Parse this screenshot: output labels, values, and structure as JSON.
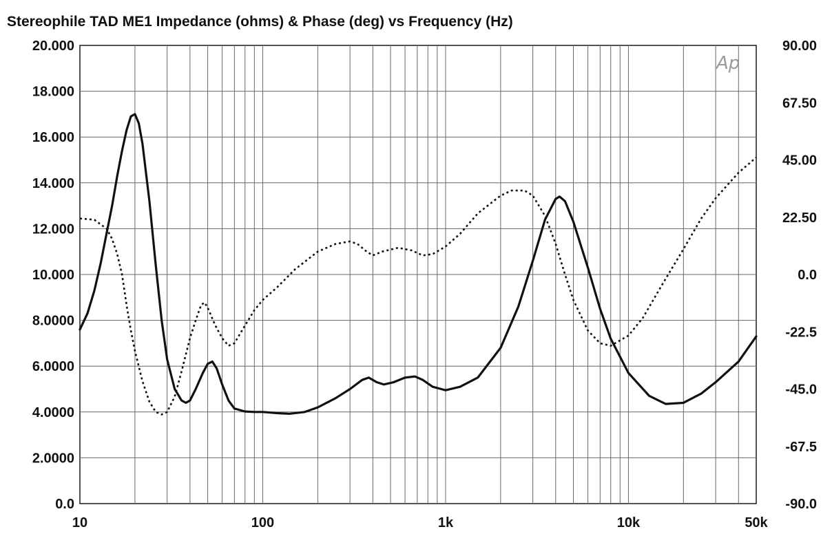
{
  "chart_data": {
    "type": "line",
    "title": "Stereophile  TAD ME1  Impedance (ohms) & Phase (deg) vs Frequency (Hz)",
    "logo": "Ap",
    "x_scale": "log",
    "xlim": [
      10,
      50000
    ],
    "x_ticks": [
      {
        "value": 10,
        "label": "10"
      },
      {
        "value": 100,
        "label": "100"
      },
      {
        "value": 1000,
        "label": "1k"
      },
      {
        "value": 10000,
        "label": "10k"
      },
      {
        "value": 50000,
        "label": "50k"
      }
    ],
    "y_left": {
      "lim": [
        0,
        20
      ],
      "ticks": [
        {
          "value": 0,
          "label": "0.0"
        },
        {
          "value": 2,
          "label": "2.0000"
        },
        {
          "value": 4,
          "label": "4.0000"
        },
        {
          "value": 6,
          "label": "6.0000"
        },
        {
          "value": 8,
          "label": "8.0000"
        },
        {
          "value": 10,
          "label": "10.000"
        },
        {
          "value": 12,
          "label": "12.000"
        },
        {
          "value": 14,
          "label": "14.000"
        },
        {
          "value": 16,
          "label": "16.000"
        },
        {
          "value": 18,
          "label": "18.000"
        },
        {
          "value": 20,
          "label": "20.000"
        }
      ]
    },
    "y_right": {
      "lim": [
        -90,
        90
      ],
      "ticks": [
        {
          "value": -90,
          "label": "-90.0"
        },
        {
          "value": -67.5,
          "label": "-67.5"
        },
        {
          "value": -45,
          "label": "-45.0"
        },
        {
          "value": -22.5,
          "label": "-22.5"
        },
        {
          "value": 0,
          "label": "0.0"
        },
        {
          "value": 22.5,
          "label": "22.50"
        },
        {
          "value": 45,
          "label": "45.00"
        },
        {
          "value": 67.5,
          "label": "67.50"
        },
        {
          "value": 90,
          "label": "90.00"
        }
      ]
    },
    "grid": true,
    "series": [
      {
        "axis": "left",
        "style": "solid",
        "points": [
          [
            10,
            7.6
          ],
          [
            11,
            8.3
          ],
          [
            12,
            9.3
          ],
          [
            13,
            10.5
          ],
          [
            14,
            11.8
          ],
          [
            15,
            13.0
          ],
          [
            16,
            14.3
          ],
          [
            17,
            15.4
          ],
          [
            18,
            16.3
          ],
          [
            19,
            16.9
          ],
          [
            20,
            17.0
          ],
          [
            21,
            16.6
          ],
          [
            22,
            15.7
          ],
          [
            24,
            13.2
          ],
          [
            26,
            10.4
          ],
          [
            28,
            8.0
          ],
          [
            30,
            6.3
          ],
          [
            33,
            5.0
          ],
          [
            36,
            4.5
          ],
          [
            38,
            4.4
          ],
          [
            40,
            4.5
          ],
          [
            43,
            5.0
          ],
          [
            47,
            5.7
          ],
          [
            50,
            6.1
          ],
          [
            53,
            6.2
          ],
          [
            56,
            5.9
          ],
          [
            60,
            5.2
          ],
          [
            65,
            4.5
          ],
          [
            70,
            4.15
          ],
          [
            80,
            4.02
          ],
          [
            90,
            4.0
          ],
          [
            100,
            4.0
          ],
          [
            120,
            3.95
          ],
          [
            140,
            3.92
          ],
          [
            170,
            4.0
          ],
          [
            200,
            4.2
          ],
          [
            250,
            4.6
          ],
          [
            300,
            5.0
          ],
          [
            350,
            5.4
          ],
          [
            380,
            5.5
          ],
          [
            420,
            5.3
          ],
          [
            460,
            5.2
          ],
          [
            520,
            5.3
          ],
          [
            600,
            5.5
          ],
          [
            680,
            5.55
          ],
          [
            750,
            5.4
          ],
          [
            850,
            5.1
          ],
          [
            1000,
            4.95
          ],
          [
            1200,
            5.1
          ],
          [
            1500,
            5.5
          ],
          [
            2000,
            6.8
          ],
          [
            2500,
            8.6
          ],
          [
            3000,
            10.6
          ],
          [
            3500,
            12.4
          ],
          [
            4000,
            13.3
          ],
          [
            4200,
            13.4
          ],
          [
            4500,
            13.2
          ],
          [
            5000,
            12.3
          ],
          [
            6000,
            10.3
          ],
          [
            7000,
            8.5
          ],
          [
            8000,
            7.2
          ],
          [
            10000,
            5.7
          ],
          [
            13000,
            4.7
          ],
          [
            16000,
            4.35
          ],
          [
            20000,
            4.4
          ],
          [
            25000,
            4.8
          ],
          [
            30000,
            5.3
          ],
          [
            40000,
            6.2
          ],
          [
            50000,
            7.3
          ]
        ]
      },
      {
        "axis": "right",
        "style": "dotted",
        "points": [
          [
            10,
            22
          ],
          [
            12,
            21.5
          ],
          [
            14,
            18
          ],
          [
            15,
            14
          ],
          [
            16,
            8
          ],
          [
            17,
            0
          ],
          [
            18,
            -12
          ],
          [
            19,
            -22
          ],
          [
            20,
            -30
          ],
          [
            22,
            -42
          ],
          [
            24,
            -50
          ],
          [
            26,
            -54
          ],
          [
            28,
            -55
          ],
          [
            30,
            -54
          ],
          [
            33,
            -48
          ],
          [
            36,
            -38
          ],
          [
            40,
            -25
          ],
          [
            43,
            -18
          ],
          [
            46,
            -12
          ],
          [
            48,
            -11
          ],
          [
            50,
            -13
          ],
          [
            55,
            -20
          ],
          [
            60,
            -25
          ],
          [
            65,
            -28
          ],
          [
            70,
            -27
          ],
          [
            80,
            -20
          ],
          [
            90,
            -14
          ],
          [
            100,
            -10
          ],
          [
            120,
            -5
          ],
          [
            150,
            2
          ],
          [
            200,
            9
          ],
          [
            250,
            12
          ],
          [
            300,
            13
          ],
          [
            330,
            12
          ],
          [
            370,
            9
          ],
          [
            400,
            7.5
          ],
          [
            450,
            9
          ],
          [
            550,
            10.5
          ],
          [
            650,
            9.5
          ],
          [
            750,
            7.5
          ],
          [
            850,
            8
          ],
          [
            1000,
            11
          ],
          [
            1200,
            16
          ],
          [
            1500,
            24
          ],
          [
            2000,
            31
          ],
          [
            2300,
            33
          ],
          [
            2700,
            33
          ],
          [
            3000,
            31
          ],
          [
            3500,
            23
          ],
          [
            4000,
            12
          ],
          [
            4500,
            0
          ],
          [
            5000,
            -10
          ],
          [
            6000,
            -22
          ],
          [
            7000,
            -27
          ],
          [
            8000,
            -28
          ],
          [
            10000,
            -24
          ],
          [
            12000,
            -17
          ],
          [
            15000,
            -5
          ],
          [
            20000,
            10
          ],
          [
            25000,
            22
          ],
          [
            30000,
            30
          ],
          [
            40000,
            40
          ],
          [
            50000,
            46
          ]
        ]
      }
    ]
  }
}
